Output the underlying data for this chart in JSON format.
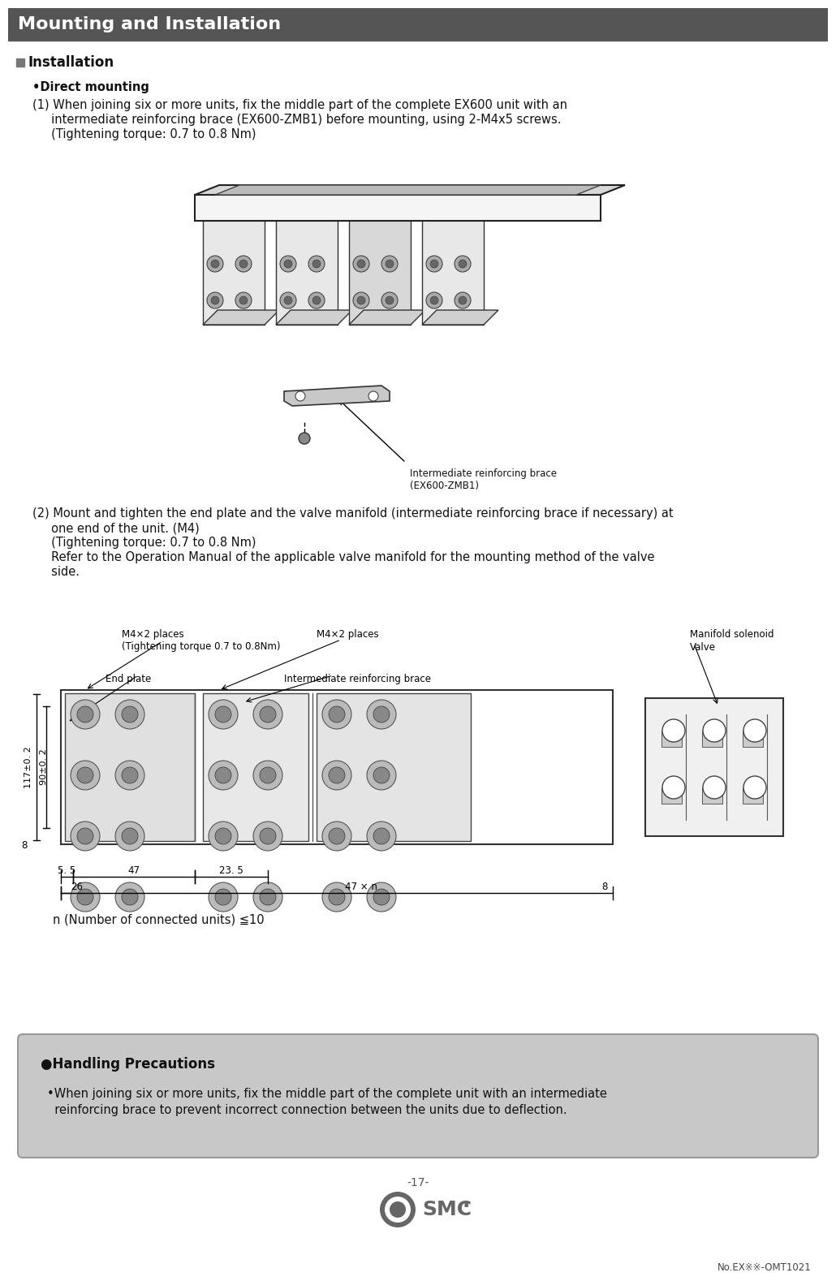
{
  "title": "Mounting and Installation",
  "title_bg": "#555555",
  "title_fg": "#ffffff",
  "page_bg": "#ffffff",
  "section1_header": "■Installation",
  "subsection1": "•Direct mounting",
  "para1_line1": "(1) When joining six or more units, fix the middle part of the complete EX600 unit with an",
  "para1_line2": "     intermediate reinforcing brace (EX600-ZMB1) before mounting, using 2-M4x5 screws.",
  "para1_line3": "     (Tightening torque: 0.7 to 0.8 Nm)",
  "img1_label_line1": "Intermediate reinforcing brace",
  "img1_label_line2": "(EX600-ZMB1)",
  "para2_line1": "(2) Mount and tighten the end plate and the valve manifold (intermediate reinforcing brace if necessary) at",
  "para2_line2": "     one end of the unit. (M4)",
  "para2_line3": "     (Tightening torque: 0.7 to 0.8 Nm)",
  "para2_line4": "     Refer to the Operation Manual of the applicable valve manifold for the mounting method of the valve",
  "para2_line5": "     side.",
  "diag_m4_left_l1": "M4×2 places",
  "diag_m4_left_l2": "(Tightening torque 0.7 to 0.8Nm)",
  "diag_m4_right": "M4×2 places",
  "diag_manifold_l1": "Manifold solenoid",
  "diag_manifold_l2": "Valve",
  "diag_end_plate": "End plate",
  "diag_int_brace": "Intermediate reinforcing brace",
  "dim_5_5": "5. 5",
  "dim_47": "47",
  "dim_23_5": "23. 5",
  "dim_26": "26",
  "dim_47n": "47 × n",
  "dim_8": "8",
  "dim_117": "117±0. 2",
  "dim_90": "90±0. 2",
  "dim_8b": "8",
  "n_label": "n (Number of connected units) ≦10",
  "handling_title": "●Handling Precautions",
  "handling_body_l1": "•When joining six or more units, fix the middle part of the complete unit with an intermediate",
  "handling_body_l2": "  reinforcing brace to prevent incorrect connection between the units due to deflection.",
  "handling_bg": "#c8c8c8",
  "footer_page": "-17-",
  "footer_doc": "No.EX※※-OMT1021",
  "body_fs": 10.5,
  "small_fs": 8.5
}
